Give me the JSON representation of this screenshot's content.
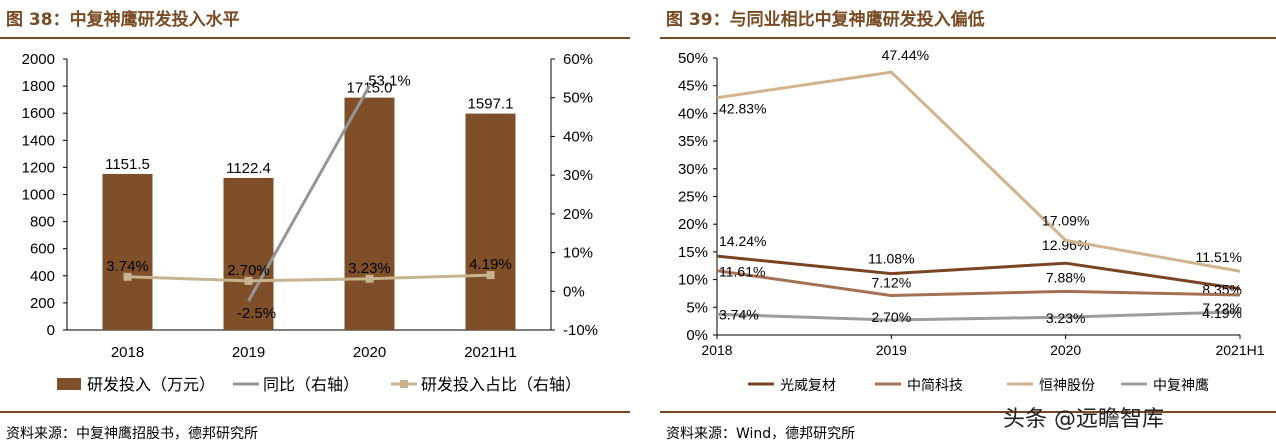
{
  "left": {
    "title": "图 38：中复神鹰研发投入水平",
    "source": "资料来源：中复神鹰招股书，德邦研究所",
    "chart_data": {
      "type": "bar",
      "categories": [
        "2018",
        "2019",
        "2020",
        "2021H1"
      ],
      "y_left_ticks": [
        "0",
        "200",
        "400",
        "600",
        "800",
        "1000",
        "1200",
        "1400",
        "1600",
        "1800",
        "2000"
      ],
      "y_right_ticks": [
        "-10%",
        "0%",
        "10%",
        "20%",
        "30%",
        "40%",
        "50%",
        "60%"
      ],
      "ylim_left": [
        0,
        2000
      ],
      "ylim_right": [
        -10,
        60
      ],
      "grid": false,
      "legend_position": "bottom",
      "bars": {
        "name": "研发投入（万元）",
        "color": "#7f4f2a",
        "values": [
          1151.5,
          1122.4,
          1715.0,
          1597.1
        ],
        "labels": [
          "1151.5",
          "1122.4",
          "1715.0",
          "1597.1"
        ]
      },
      "lines": [
        {
          "name": "同比（右轴）",
          "color": "#969696",
          "marker": false,
          "x_index": [
            1,
            2
          ],
          "values": [
            -2.5,
            53.1
          ],
          "labels": [
            "-2.5%",
            "53.1%"
          ]
        },
        {
          "name": "研发投入占比（右轴）",
          "color": "#c6b48f",
          "marker": true,
          "x_index": [
            0,
            1,
            2,
            3
          ],
          "values": [
            3.74,
            2.7,
            3.23,
            4.19
          ],
          "labels": [
            "3.74%",
            "2.70%",
            "3.23%",
            "4.19%"
          ]
        }
      ]
    }
  },
  "right": {
    "title": "图 39：与同业相比中复神鹰研发投入偏低",
    "source": "资料来源：Wind，德邦研究所",
    "chart_data": {
      "type": "line",
      "categories": [
        "2018",
        "2019",
        "2020",
        "2021H1"
      ],
      "y_ticks": [
        "0%",
        "5%",
        "10%",
        "15%",
        "20%",
        "25%",
        "30%",
        "35%",
        "40%",
        "45%",
        "50%"
      ],
      "ylim": [
        0,
        50
      ],
      "grid": false,
      "legend_position": "bottom",
      "series": [
        {
          "name": "光威复材",
          "color": "#7a4422",
          "values": [
            14.24,
            11.08,
            12.96,
            8.35
          ],
          "labels": [
            "14.24%",
            "11.08%",
            "12.96%",
            "8.35%"
          ]
        },
        {
          "name": "中简科技",
          "color": "#a47052",
          "values": [
            11.61,
            7.12,
            7.88,
            7.22
          ],
          "labels": [
            "11.61%",
            "7.12%",
            "7.88%",
            "7.22%"
          ]
        },
        {
          "name": "恒神股份",
          "color": "#d2b48c",
          "values": [
            42.83,
            47.44,
            17.09,
            11.51
          ],
          "labels": [
            "42.83%",
            "47.44%",
            "17.09%",
            "11.51%"
          ]
        },
        {
          "name": "中复神鹰",
          "color": "#9c9c9c",
          "values": [
            3.74,
            2.7,
            3.23,
            4.19
          ],
          "labels": [
            "3.74%",
            "2.70%",
            "3.23%",
            "4.19%"
          ]
        }
      ]
    }
  },
  "watermark": "头条 @远瞻智库"
}
